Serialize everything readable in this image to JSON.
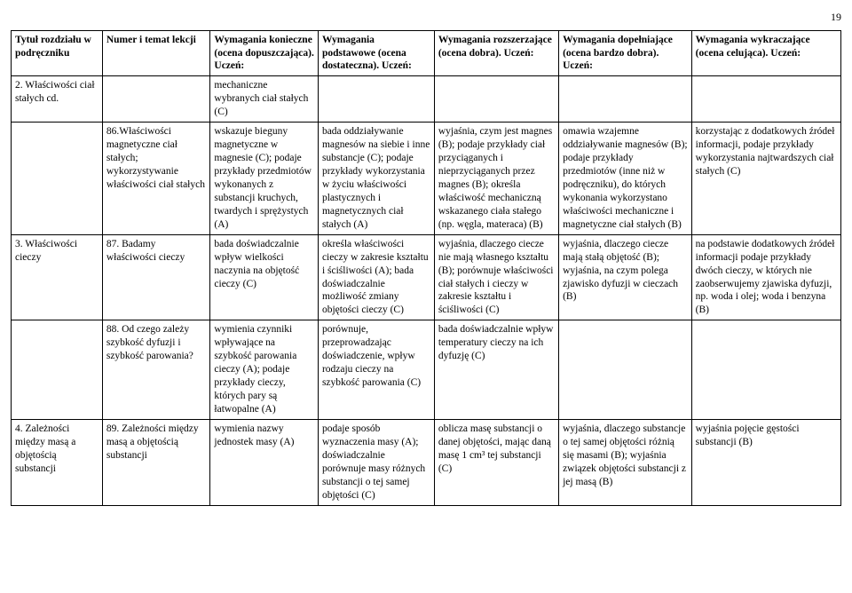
{
  "page_number": "19",
  "headers": [
    "Tytuł rozdziału w podręczniku",
    "Numer i temat lekcji",
    "Wymagania konieczne (ocena dopuszczająca). Uczeń:",
    "Wymagania podstawowe (ocena dostateczna). Uczeń:",
    "Wymagania rozszerzające (ocena dobra). Uczeń:",
    "Wymagania dopełniające (ocena bardzo dobra). Uczeń:",
    "Wymagania wykraczające (ocena celująca). Uczeń:"
  ],
  "rows": [
    {
      "c0": "2. Właściwości ciał stałych cd.",
      "c1": "",
      "c2": "mechaniczne wybranych ciał stałych (C)",
      "c3": "",
      "c4": "",
      "c5": "",
      "c6": ""
    },
    {
      "c0": "",
      "c1": "86.Właściwości magnetyczne ciał stałych; wykorzystywanie właściwości ciał stałych",
      "c2": "wskazuje bieguny magnetyczne w magnesie (C); podaje przykłady przedmiotów wykonanych z substancji kruchych, twardych i sprężystych (A)",
      "c3": "bada oddziaływanie magnesów na siebie i inne substancje (C); podaje przykłady wykorzystania w życiu właściwości plastycznych i magnetycznych ciał stałych (A)",
      "c4": "wyjaśnia, czym jest magnes (B); podaje przykłady ciał przyciąganych i nieprzyciąganych przez magnes (B); określa właściwość mechaniczną wskazanego ciała stałego (np. węgla, materaca) (B)",
      "c5": "omawia wzajemne oddziaływanie magnesów (B); podaje przykłady przedmiotów (inne niż w podręczniku), do których wykonania wykorzystano właściwości mechaniczne i magnetyczne ciał stałych (B)",
      "c6": "korzystając z dodatkowych źródeł informacji, podaje przykłady wykorzystania najtwardszych ciał stałych (C)"
    },
    {
      "c0": "3. Właściwości cieczy",
      "c1": "87. Badamy właściwości cieczy",
      "c2": "bada doświadczalnie wpływ wielkości naczynia na objętość cieczy (C)",
      "c3": "określa właściwości cieczy w zakresie kształtu i ściśliwości (A); bada doświadczalnie możliwość zmiany objętości cieczy (C)",
      "c4": "wyjaśnia, dlaczego ciecze nie mają własnego kształtu (B); porównuje właściwości ciał stałych i cieczy w zakresie kształtu i ściśliwości (C)",
      "c5": "wyjaśnia, dlaczego ciecze mają stałą objętość (B); wyjaśnia, na czym polega zjawisko dyfuzji w cieczach (B)",
      "c6": "na podstawie dodatkowych źródeł informacji podaje przykłady dwóch cieczy, w których nie zaobserwujemy zjawiska dyfuzji, np. woda i olej; woda i benzyna (B)"
    },
    {
      "c0": "",
      "c1": "88. Od czego zależy szybkość dyfuzji i szybkość parowania?",
      "c2": "wymienia czynniki wpływające na szybkość parowania cieczy (A); podaje przykłady cieczy, których pary są łatwopalne (A)",
      "c3": "porównuje, przeprowadzając doświadczenie, wpływ rodzaju cieczy na szybkość parowania (C)",
      "c4": "bada doświadczalnie wpływ temperatury cieczy na ich dyfuzję (C)",
      "c5": "",
      "c6": ""
    },
    {
      "c0": "4. Zależności między masą a objętością substancji",
      "c1": "89. Zależności między masą a objętością substancji",
      "c2": "wymienia nazwy jednostek masy (A)",
      "c3": "podaje sposób wyznaczenia masy (A); doświadczalnie porównuje masy różnych substancji o tej samej objętości (C)",
      "c4": "oblicza masę substancji o danej objętości, mając daną masę 1 cm³ tej substancji (C)",
      "c5": "wyjaśnia, dlaczego substancje o tej samej objętości różnią się masami (B); wyjaśnia związek objętości substancji z jej masą (B)",
      "c6": "wyjaśnia pojęcie gęstości substancji (B)"
    }
  ]
}
